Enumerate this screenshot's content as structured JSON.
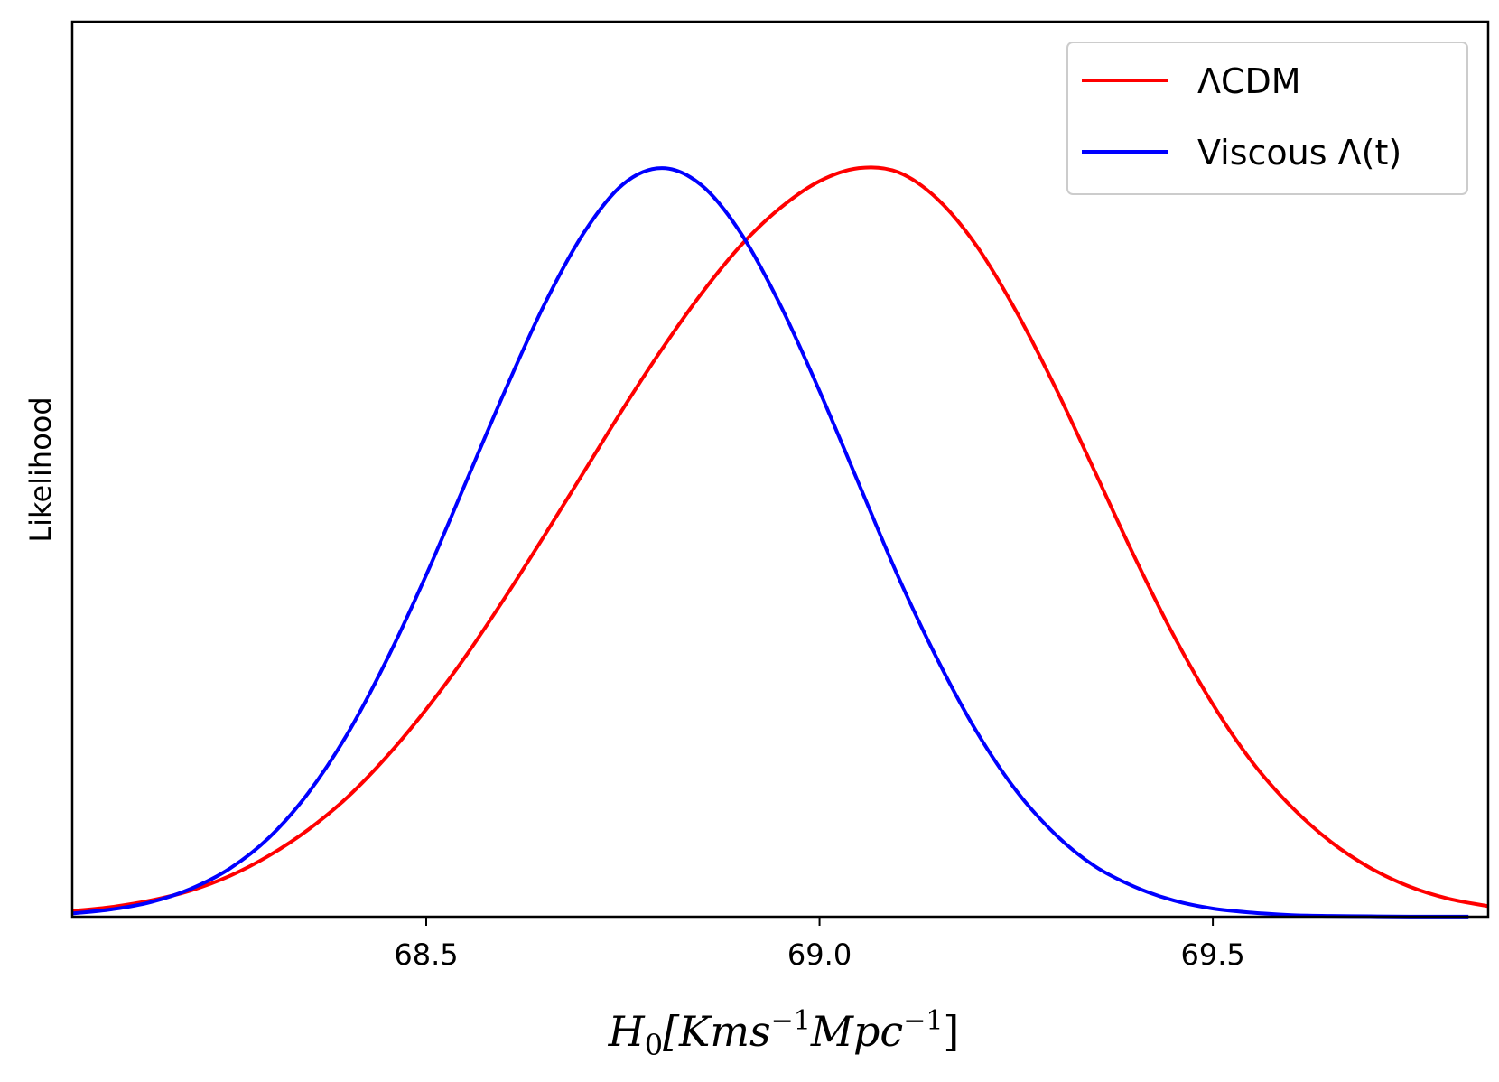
{
  "chart_data": {
    "type": "line",
    "xlabel": "H0[Kms−1Mpc−1]",
    "xlabel_parts": {
      "base": "H",
      "sub": "0",
      "open": "[Kms",
      "sup1": "−1",
      "mid": "Mpc",
      "sup2": "−1",
      "close": "]"
    },
    "ylabel": "Likelihood",
    "xlim": [
      68.05,
      69.85
    ],
    "ylim": [
      0,
      1.1
    ],
    "xticks": [
      68.5,
      69.0,
      69.5
    ],
    "xtick_labels": [
      "68.5",
      "69.0",
      "69.5"
    ],
    "grid": false,
    "legend_position": "top-right",
    "series": [
      {
        "name": "ΛCDM",
        "color": "#ff0000",
        "x": [
          68.05,
          68.1,
          68.15,
          68.2,
          68.25,
          68.3,
          68.35,
          68.4,
          68.45,
          68.5,
          68.55,
          68.6,
          68.65,
          68.7,
          68.75,
          68.8,
          68.85,
          68.9,
          68.95,
          69.0,
          69.05,
          69.1,
          69.15,
          69.2,
          69.25,
          69.3,
          69.35,
          69.4,
          69.45,
          69.5,
          69.55,
          69.6,
          69.65,
          69.7,
          69.75,
          69.8,
          69.85
        ],
        "y": [
          0.007,
          0.012,
          0.02,
          0.032,
          0.05,
          0.075,
          0.107,
          0.147,
          0.197,
          0.255,
          0.32,
          0.392,
          0.468,
          0.546,
          0.624,
          0.698,
          0.766,
          0.825,
          0.871,
          0.904,
          0.92,
          0.915,
          0.882,
          0.824,
          0.744,
          0.65,
          0.547,
          0.443,
          0.346,
          0.261,
          0.19,
          0.135,
          0.092,
          0.06,
          0.037,
          0.022,
          0.013
        ]
      },
      {
        "name": "Viscous Λ(t)",
        "color": "#0000ff",
        "x": [
          68.05,
          68.1,
          68.15,
          68.2,
          68.25,
          68.3,
          68.35,
          68.4,
          68.45,
          68.5,
          68.55,
          68.6,
          68.65,
          68.7,
          68.75,
          68.8,
          68.85,
          68.9,
          68.95,
          69.0,
          69.05,
          69.1,
          69.15,
          69.2,
          69.25,
          69.3,
          69.35,
          69.4,
          69.45,
          69.5,
          69.55,
          69.6,
          69.65,
          69.7,
          69.75,
          69.8,
          69.825
        ],
        "y": [
          0.004,
          0.009,
          0.018,
          0.034,
          0.059,
          0.097,
          0.152,
          0.225,
          0.316,
          0.42,
          0.533,
          0.646,
          0.752,
          0.84,
          0.9,
          0.92,
          0.899,
          0.84,
          0.752,
          0.646,
          0.532,
          0.418,
          0.316,
          0.227,
          0.155,
          0.101,
          0.062,
          0.037,
          0.02,
          0.01,
          0.005,
          0.002,
          0.001,
          0.0005,
          0.0002,
          0.0001,
          0.0001
        ]
      }
    ]
  }
}
